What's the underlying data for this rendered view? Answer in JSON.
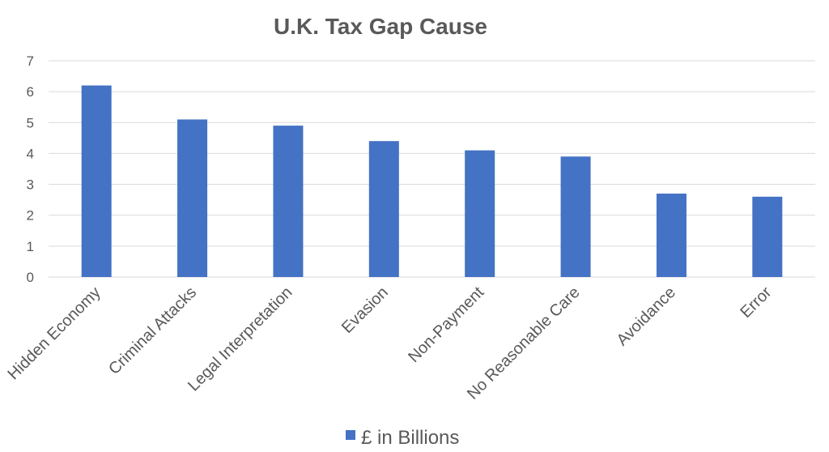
{
  "chart_data": {
    "type": "bar",
    "title": "U.K. Tax Gap Cause",
    "categories": [
      "Hidden Economy",
      "Criminal Attacks",
      "Legal Interpretation",
      "Evasion",
      "Non-Payment",
      "No Reasonable Care",
      "Avoidance",
      "Error"
    ],
    "series": [
      {
        "name": "£ in Billions",
        "values": [
          6.2,
          5.1,
          4.9,
          4.4,
          4.1,
          3.9,
          2.7,
          2.6
        ],
        "color": "#4472C4"
      }
    ],
    "ylim": [
      0,
      7
    ],
    "yticks": [
      0,
      1,
      2,
      3,
      4,
      5,
      6,
      7
    ],
    "grid": true,
    "legend_position": "bottom",
    "gridline_color": "#D9D9D9",
    "text_color": "#595959"
  }
}
